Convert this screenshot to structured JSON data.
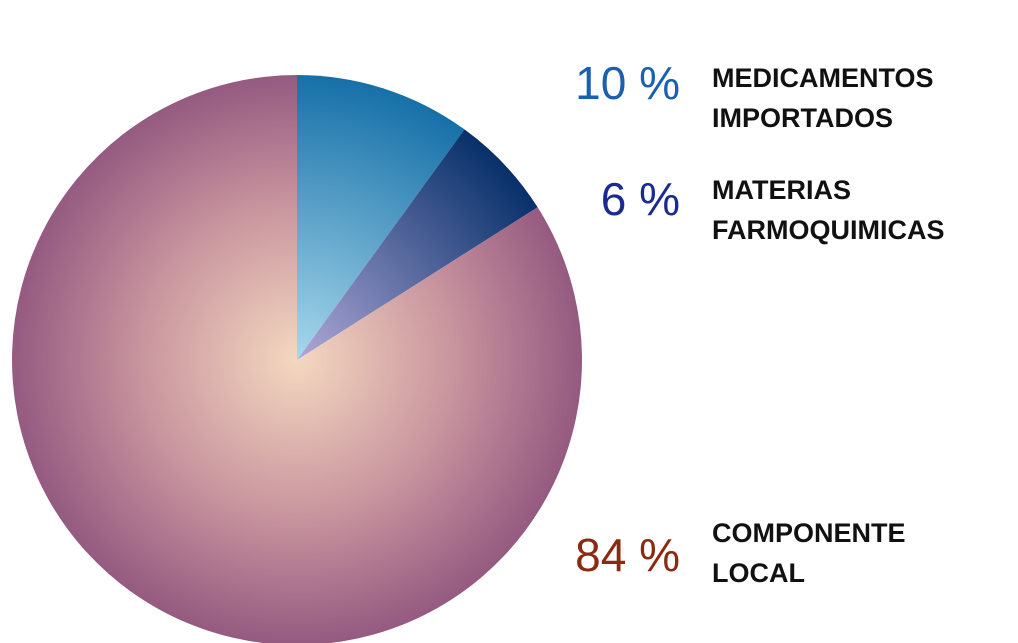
{
  "chart_data": {
    "type": "pie",
    "categories": [
      "MEDICAMENTOS IMPORTADOS",
      "MATERIAS FARMOQUIMICAS",
      "COMPONENTE LOCAL"
    ],
    "values": [
      10,
      6,
      84
    ],
    "value_labels": [
      "10 %",
      "6 %",
      "84 %"
    ],
    "colors": [
      "#1a78b0",
      "#0a3470",
      "#9a6082"
    ]
  }
}
